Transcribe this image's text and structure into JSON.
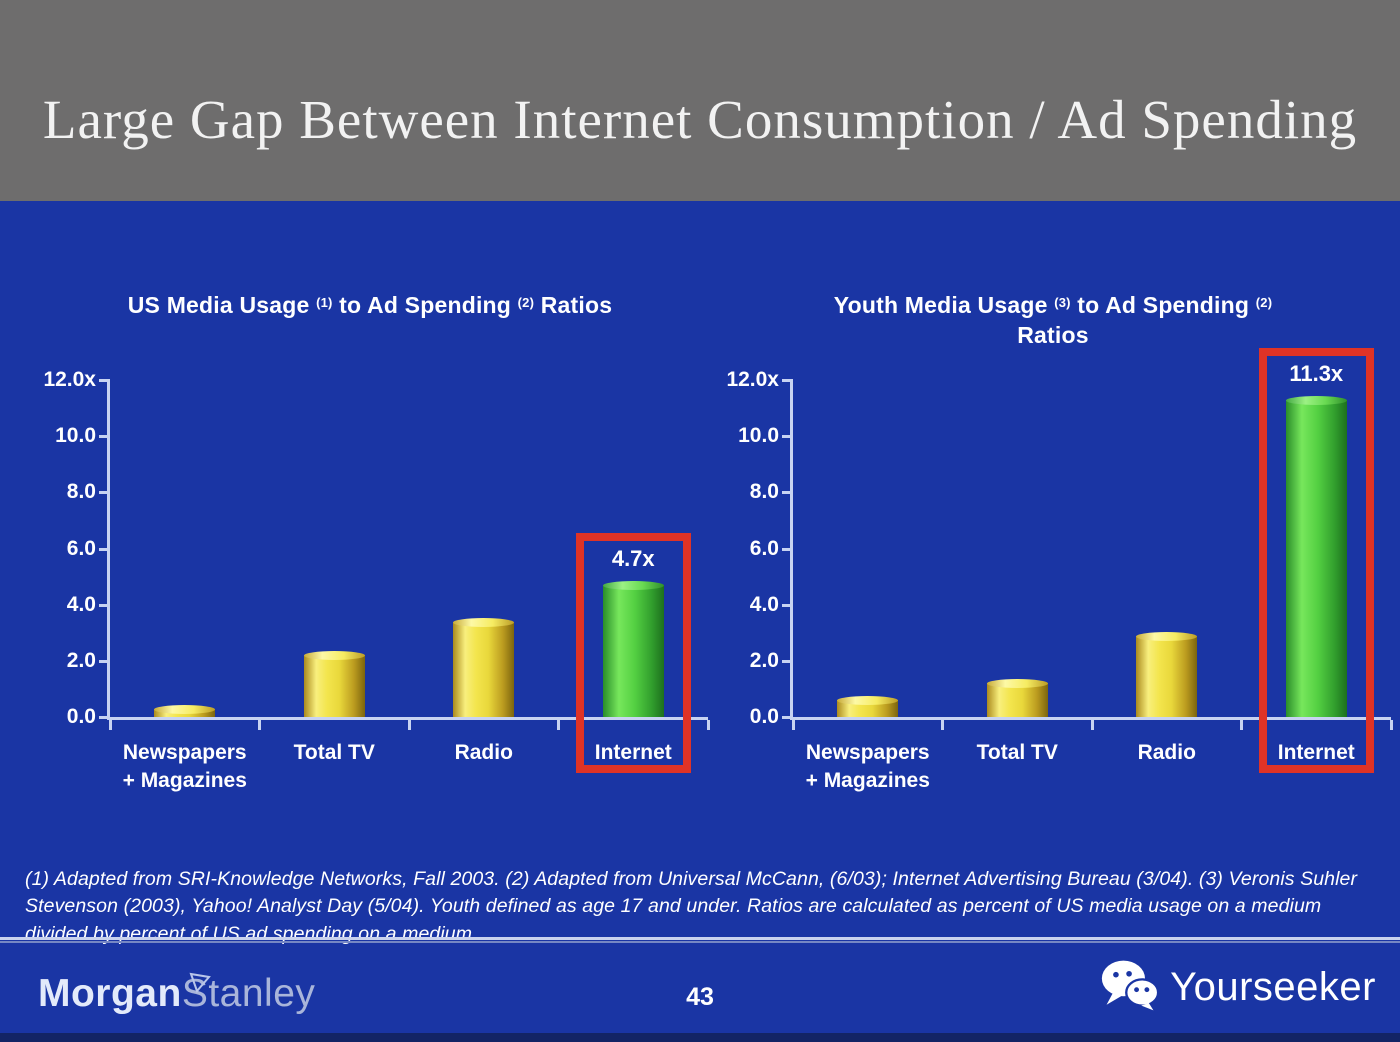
{
  "slide": {
    "title": "Large Gap Between Internet Consumption / Ad Spending",
    "page_number": "43"
  },
  "footnote": "(1) Adapted from SRI-Knowledge Networks, Fall 2003.  (2) Adapted from Universal McCann, (6/03); Internet Advertising Bureau (3/04). (3) Veronis Suhler Stevenson (2003), Yahoo! Analyst Day (5/04).  Youth defined as age 17 and under.  Ratios are calculated as percent of US media usage on a medium divided by percent of US ad spending on a medium.",
  "footer": {
    "brand_morgan": "Morgan",
    "brand_stanley": "Stanley",
    "watermark": "Yourseeker"
  },
  "colors": {
    "background_blue": "#1a35a4",
    "header_gray": "#6e6d6d",
    "bar_yellow": "#f3e54d",
    "bar_green": "#54d042",
    "highlight_red": "#df3326",
    "axis_light": "#c8d3f2",
    "text_white": "#ffffff",
    "bottom_strip_navy": "#132465"
  },
  "chart_data": [
    {
      "type": "bar",
      "title": "US Media Usage (1) to Ad Spending (2) Ratios",
      "title_lines": [
        [
          {
            "t": "US Media Usage "
          },
          {
            "sup": "(1)"
          },
          {
            "t": " to Ad Spending "
          },
          {
            "sup": "(2)"
          },
          {
            "t": " Ratios"
          }
        ]
      ],
      "categories": [
        [
          "Newspapers",
          "+ Magazines"
        ],
        [
          "Total TV"
        ],
        [
          "Radio"
        ],
        [
          "Internet"
        ]
      ],
      "category_ids": [
        "newspapers-magazines",
        "total-tv",
        "radio",
        "internet"
      ],
      "values": [
        0.3,
        2.2,
        3.4,
        4.7
      ],
      "bar_colors": [
        "yellow",
        "yellow",
        "yellow",
        "green"
      ],
      "highlight": {
        "index": 3,
        "label": "4.7x"
      },
      "y_axis": {
        "max": 12,
        "min": 0,
        "ticks": [
          {
            "value": 12,
            "label": "12.0x"
          },
          {
            "value": 10,
            "label": "10.0"
          },
          {
            "value": 8,
            "label": "8.0"
          },
          {
            "value": 6,
            "label": "6.0"
          },
          {
            "value": 4,
            "label": "4.0"
          },
          {
            "value": 2,
            "label": "2.0"
          },
          {
            "value": 0,
            "label": "0.0"
          }
        ]
      },
      "grid": false,
      "legend": null
    },
    {
      "type": "bar",
      "title": "Youth Media Usage (3) to Ad Spending (2) Ratios",
      "title_lines": [
        [
          {
            "t": "Youth Media Usage "
          },
          {
            "sup": "(3)"
          },
          {
            "t": " to Ad Spending "
          },
          {
            "sup": "(2)"
          }
        ],
        [
          {
            "t": "Ratios"
          }
        ]
      ],
      "categories": [
        [
          "Newspapers",
          "+ Magazines"
        ],
        [
          "Total TV"
        ],
        [
          "Radio"
        ],
        [
          "Internet"
        ]
      ],
      "category_ids": [
        "newspapers-magazines",
        "total-tv",
        "radio",
        "internet"
      ],
      "values": [
        0.6,
        1.2,
        2.9,
        11.3
      ],
      "bar_colors": [
        "yellow",
        "yellow",
        "yellow",
        "green"
      ],
      "highlight": {
        "index": 3,
        "label": "11.3x"
      },
      "y_axis": {
        "max": 12,
        "min": 0,
        "ticks": [
          {
            "value": 12,
            "label": "12.0x"
          },
          {
            "value": 10,
            "label": "10.0"
          },
          {
            "value": 8,
            "label": "8.0"
          },
          {
            "value": 6,
            "label": "6.0"
          },
          {
            "value": 4,
            "label": "4.0"
          },
          {
            "value": 2,
            "label": "2.0"
          },
          {
            "value": 0,
            "label": "0.0"
          }
        ]
      },
      "grid": false,
      "legend": null
    }
  ]
}
